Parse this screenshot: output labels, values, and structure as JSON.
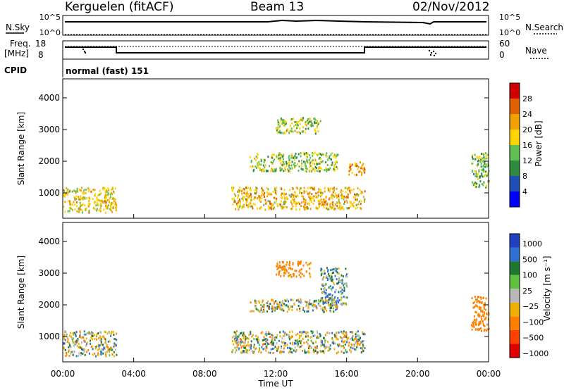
{
  "header": {
    "station": "Kerguelen (fitACF)",
    "beam": "Beam 13",
    "date": "02/Nov/2012"
  },
  "panel_labels": {
    "nsky": "N.Sky",
    "nsky_ticks": [
      "10^5",
      "10^0"
    ],
    "nsearch": "N.Search",
    "nsearch_ticks": [
      "10^5",
      "10^0"
    ],
    "freq": "Freq.",
    "freq_unit": "[MHz]",
    "freq_ticks": [
      "18",
      "8"
    ],
    "nave": "Nave",
    "nave_ticks": [
      "60",
      "0"
    ],
    "cpid_label": "CPID",
    "cpid_value": "normal (fast) 151"
  },
  "colors": {
    "power_scale": [
      "#0000ff",
      "#1f4fb4",
      "#2e8a3e",
      "#5fbf50",
      "#ffd400",
      "#f0a000",
      "#e06000",
      "#d00000"
    ],
    "velocity_scale": [
      "#2040c0",
      "#2f6fd0",
      "#207830",
      "#60c040",
      "#c8c8c8",
      "#f0b000",
      "#ff8000",
      "#ff4000",
      "#e00000"
    ],
    "ground_scatter": "#b8b8b8",
    "axis": "#000000"
  },
  "chart_data": [
    {
      "type": "heatmap",
      "panel": "power",
      "ylabel": "Slant Range [km]",
      "ylim": [
        200,
        4600
      ],
      "yticks": [
        1000,
        2000,
        3000,
        4000
      ],
      "xlim_hours": [
        0,
        24
      ],
      "colorbar": {
        "label": "Power [dB]",
        "ticks": [
          "4",
          "8",
          "12",
          "16",
          "20",
          "24",
          "28"
        ],
        "range": [
          0,
          30
        ]
      },
      "echo_regions": [
        {
          "t_start": 0.0,
          "t_end": 3.0,
          "r_low": 400,
          "r_high": 1200,
          "level_db": 18
        },
        {
          "t_start": 9.5,
          "t_end": 17.0,
          "r_low": 500,
          "r_high": 1200,
          "level_db": 20
        },
        {
          "t_start": 10.5,
          "t_end": 15.5,
          "r_low": 1700,
          "r_high": 2300,
          "level_db": 14
        },
        {
          "t_start": 12.0,
          "t_end": 14.5,
          "r_low": 2900,
          "r_high": 3400,
          "level_db": 14
        },
        {
          "t_start": 16.0,
          "t_end": 17.0,
          "r_low": 1600,
          "r_high": 2000,
          "level_db": 22
        },
        {
          "t_start": 23.0,
          "t_end": 24.0,
          "r_low": 1200,
          "r_high": 2300,
          "level_db": 12
        }
      ]
    },
    {
      "type": "heatmap",
      "panel": "velocity",
      "ylabel": "Slant Range [km]",
      "ylim": [
        200,
        4600
      ],
      "yticks": [
        1000,
        2000,
        3000,
        4000
      ],
      "xlim_hours": [
        0,
        24
      ],
      "xticks": [
        "00:00",
        "04:00",
        "08:00",
        "12:00",
        "16:00",
        "20:00",
        "00:00"
      ],
      "xlabel": "Time UT",
      "colorbar": {
        "label": "Velocity [m s⁻¹]",
        "ticks": [
          "1000",
          "500",
          "100",
          "25",
          "−25",
          "−100",
          "−500",
          "−1000"
        ]
      },
      "echo_regions": [
        {
          "t_start": 0.0,
          "t_end": 3.0,
          "r_low": 400,
          "r_high": 1200,
          "velocity": 0
        },
        {
          "t_start": 9.5,
          "t_end": 17.0,
          "r_low": 500,
          "r_high": 1200,
          "velocity": 0
        },
        {
          "t_start": 10.5,
          "t_end": 15.5,
          "r_low": 1800,
          "r_high": 2200,
          "velocity": 0
        },
        {
          "t_start": 12.0,
          "t_end": 14.0,
          "r_low": 2900,
          "r_high": 3400,
          "velocity": -200
        },
        {
          "t_start": 14.5,
          "t_end": 16.0,
          "r_low": 2000,
          "r_high": 3200,
          "velocity": 80
        },
        {
          "t_start": 23.0,
          "t_end": 24.0,
          "r_low": 1200,
          "r_high": 2300,
          "velocity": -300
        }
      ]
    }
  ]
}
